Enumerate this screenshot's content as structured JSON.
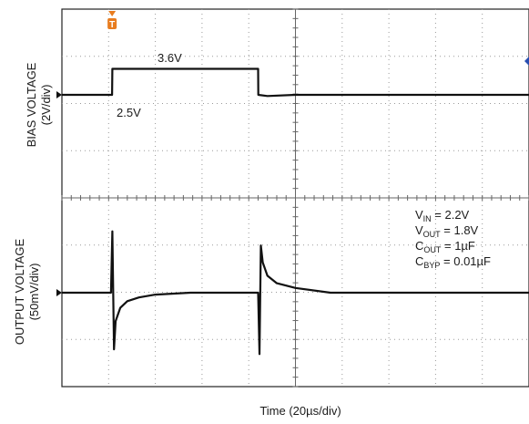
{
  "chart_data": {
    "type": "line",
    "title": "",
    "xlabel": "Time (20µs/div)",
    "x_divisions": 10,
    "x_range_us": [
      0,
      200
    ],
    "grid": true,
    "panels": [
      {
        "ylabel": "BIAS VOLTAGE",
        "yunit": "(2V/div)",
        "volts_per_div": 2,
        "series": [
          {
            "x": [
              0,
              21.5,
              21.6,
              84,
              84.1,
              88,
              100,
              140,
              200
            ],
            "y": [
              2.5,
              2.5,
              3.6,
              3.6,
              2.5,
              2.45,
              2.5,
              2.5,
              2.5
            ]
          }
        ],
        "annotations": [
          "3.6V",
          "2.5V"
        ]
      },
      {
        "ylabel": "OUTPUT VOLTAGE",
        "yunit": "(50mV/div)",
        "volts_per_div": 0.05,
        "offset_v": 1.8,
        "series": [
          {
            "x": [
              0,
              21.0,
              21.6,
              22.3,
              23.0,
              25,
              28,
              33,
              40,
              55,
              84.0,
              84.6,
              85.2,
              86,
              88,
              92,
              100,
              115,
              200
            ],
            "y": [
              1.8,
              1.8,
              1.865,
              1.74,
              1.77,
              1.784,
              1.791,
              1.795,
              1.798,
              1.8,
              1.8,
              1.735,
              1.85,
              1.832,
              1.818,
              1.81,
              1.805,
              1.8,
              1.8
            ]
          }
        ]
      }
    ],
    "conditions": [
      {
        "base": "V",
        "sub": "IN",
        "value": " = 2.2V"
      },
      {
        "base": "V",
        "sub": "OUT",
        "value": " = 1.8V"
      },
      {
        "base": "C",
        "sub": "OUT",
        "value": " = 1µF"
      },
      {
        "base": "C",
        "sub": "BYP",
        "value": " = 0.01µF"
      }
    ],
    "trigger_marker": "T",
    "colors": {
      "trace": "#111111",
      "grid": "#9a9a9a",
      "trigger": "#e87c1e",
      "level_marker": "#2a4fb0"
    }
  }
}
